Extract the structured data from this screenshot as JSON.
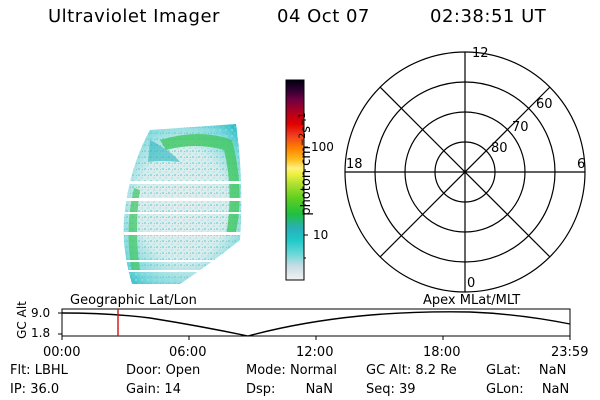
{
  "header": {
    "instrument": "Ultraviolet Imager",
    "date": "04 Oct 07",
    "time": "02:38:51 UT"
  },
  "colorbar": {
    "unit_prefix": "photon cm",
    "unit_exp1": "−2",
    "unit_mid": "s",
    "unit_exp2": "−1",
    "ticks": [
      {
        "label": "100",
        "value": 100
      },
      {
        "label": "10",
        "value": 10
      }
    ],
    "range": [
      3,
      600
    ],
    "scale": "log"
  },
  "polar_plot": {
    "mlt_labels": {
      "top": "12",
      "left": "18",
      "right": "6",
      "bottom": "0"
    },
    "lat_labels": [
      "60",
      "70",
      "80"
    ]
  },
  "orbit_plot": {
    "ylabel": "GC Alt",
    "yticks": [
      "9.0",
      "1.8"
    ],
    "left_label": "Geographic Lat/Lon",
    "right_label": "Apex MLat/MLT",
    "xticks": [
      "00:00",
      "06:00",
      "12:00",
      "18:00",
      "23:59"
    ],
    "current_time_marker": "02:38:51"
  },
  "status": {
    "flt": {
      "label": "Flt:",
      "value": "LBHL"
    },
    "ip": {
      "label": "IP:",
      "value": "36.0"
    },
    "door": {
      "label": "Door:",
      "value": "Open"
    },
    "gain": {
      "label": "Gain:",
      "value": "14"
    },
    "mode": {
      "label": "Mode:",
      "value": "Normal"
    },
    "dsp": {
      "label": "Dsp:",
      "value": "NaN"
    },
    "gcalt": {
      "label": "GC Alt:",
      "value": "8.2 Re"
    },
    "seq": {
      "label": "Seq:",
      "value": "39"
    },
    "glat": {
      "label": "GLat:",
      "value": "NaN"
    },
    "glon": {
      "label": "GLon:",
      "value": "NaN"
    }
  },
  "colors": {
    "marker": "#d01010"
  }
}
